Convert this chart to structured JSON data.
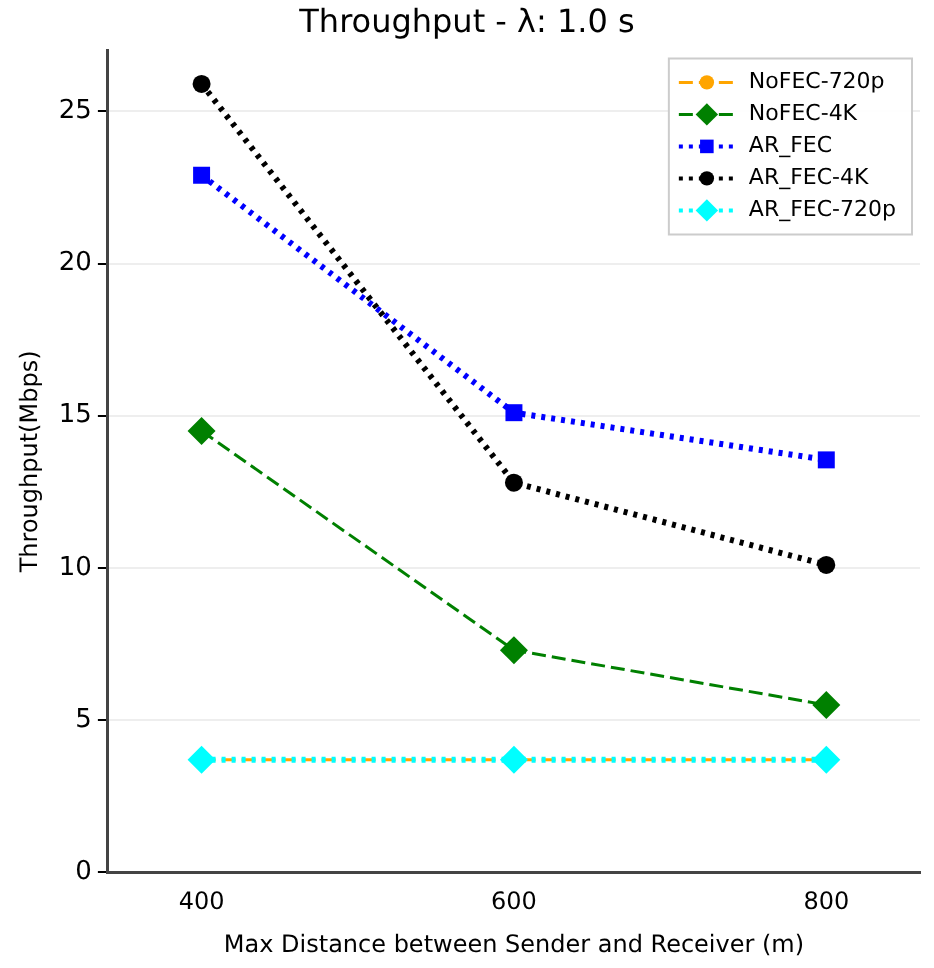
{
  "chart_data": {
    "type": "line",
    "title": "Throughput - λ: 1.0 s",
    "xlabel": "Max Distance between Sender and Receiver (m)",
    "ylabel": "Throughput(Mbps)",
    "x": [
      400,
      600,
      800
    ],
    "xlim": [
      340,
      860
    ],
    "xticks": [
      400,
      600,
      800
    ],
    "ylim": [
      0,
      27
    ],
    "yticks": [
      0,
      5,
      10,
      15,
      20,
      25
    ],
    "grid": "y",
    "legend": "top right",
    "series": [
      {
        "name": "NoFEC-720p",
        "color": "#ffa500",
        "values": [
          3.7,
          3.7,
          3.7
        ],
        "marker": "circle",
        "line_style": "dashed"
      },
      {
        "name": "NoFEC-4K",
        "color": "#008000",
        "values": [
          14.5,
          7.3,
          5.5
        ],
        "marker": "diamond",
        "line_style": "dashed"
      },
      {
        "name": "AR_FEC",
        "color": "#0000ff",
        "values": [
          22.9,
          15.1,
          13.55
        ],
        "marker": "square",
        "line_style": "dotted"
      },
      {
        "name": "AR_FEC-4K",
        "color": "#000000",
        "values": [
          25.9,
          12.8,
          10.1
        ],
        "marker": "circle",
        "line_style": "dotted"
      },
      {
        "name": "AR_FEC-720p",
        "color": "#00ffff",
        "values": [
          3.7,
          3.7,
          3.7
        ],
        "marker": "diamond",
        "line_style": "dotted"
      }
    ]
  }
}
